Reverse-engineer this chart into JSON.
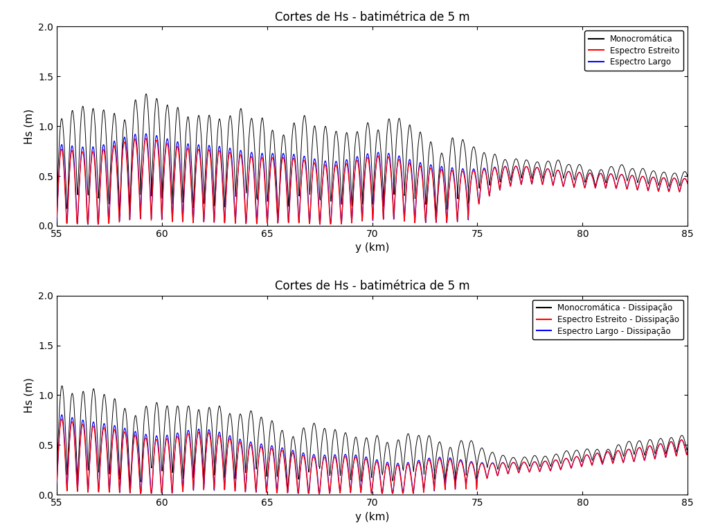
{
  "title1": "Cortes de Hs - batimétrica de 5 m",
  "title2": "Cortes de Hs - batimétrica de 5 m",
  "xlabel": "y (km)",
  "ylabel": "Hs (m)",
  "xlim": [
    55,
    85
  ],
  "ylim": [
    0,
    2
  ],
  "yticks": [
    0,
    0.5,
    1,
    1.5,
    2
  ],
  "xticks": [
    55,
    60,
    65,
    70,
    75,
    80,
    85
  ],
  "legend1": [
    "Monocromática",
    "Espectro Estreito",
    "Espectro Largo"
  ],
  "legend2": [
    "Monocromática - Dissipação",
    "Espectro Estreito - Dissipação",
    "Espectro Largo - Dissipação"
  ],
  "line_colors": [
    "black",
    "red",
    "blue"
  ],
  "background": "white",
  "n_points": 6000
}
